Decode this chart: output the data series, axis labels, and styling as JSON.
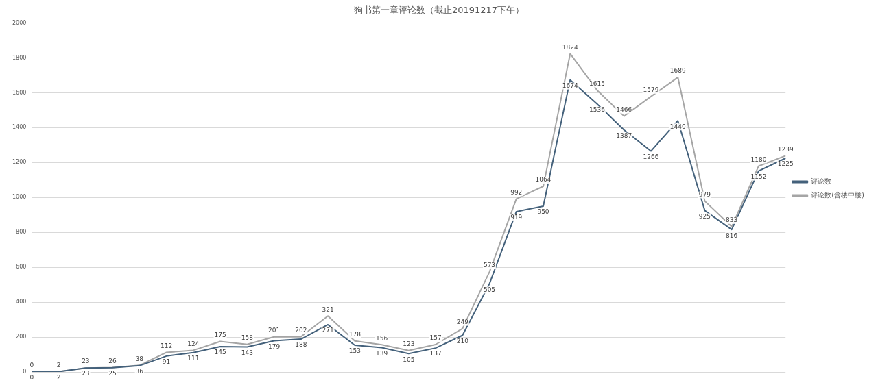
{
  "chart_data": {
    "type": "line",
    "title": "狗书第一章评论数（截止20191217下午）",
    "categories": [
      null,
      null,
      null,
      null,
      null,
      null,
      null,
      null,
      null,
      null,
      null,
      null,
      null,
      null,
      null,
      null,
      null,
      null,
      null,
      null,
      null,
      null,
      null,
      null,
      null,
      null,
      null,
      null,
      null
    ],
    "series": [
      {
        "name": "评论数",
        "color": "#44617b",
        "values": [
          0,
          2,
          23,
          25,
          36,
          91,
          111,
          145,
          143,
          179,
          188,
          271,
          153,
          139,
          105,
          137,
          210,
          505,
          919,
          950,
          1674,
          1536,
          1387,
          1266,
          1440,
          925,
          816,
          1152,
          1225
        ]
      },
      {
        "name": "评论数(含楼中楼)",
        "color": "#a5a5a5",
        "values": [
          0,
          2,
          23,
          26,
          38,
          112,
          124,
          175,
          158,
          201,
          202,
          321,
          178,
          156,
          123,
          157,
          249,
          573,
          992,
          1064,
          1824,
          1615,
          1466,
          1579,
          1689,
          979,
          833,
          1180,
          1239
        ]
      }
    ],
    "ylim": [
      0,
      2000
    ],
    "yticks": [
      0,
      200,
      400,
      600,
      800,
      1000,
      1200,
      1400,
      1600,
      1800,
      2000
    ],
    "grid": "y",
    "legend": "right",
    "tick_labels": "y",
    "marker": "none",
    "line_style": "solid",
    "data_labels": true
  }
}
